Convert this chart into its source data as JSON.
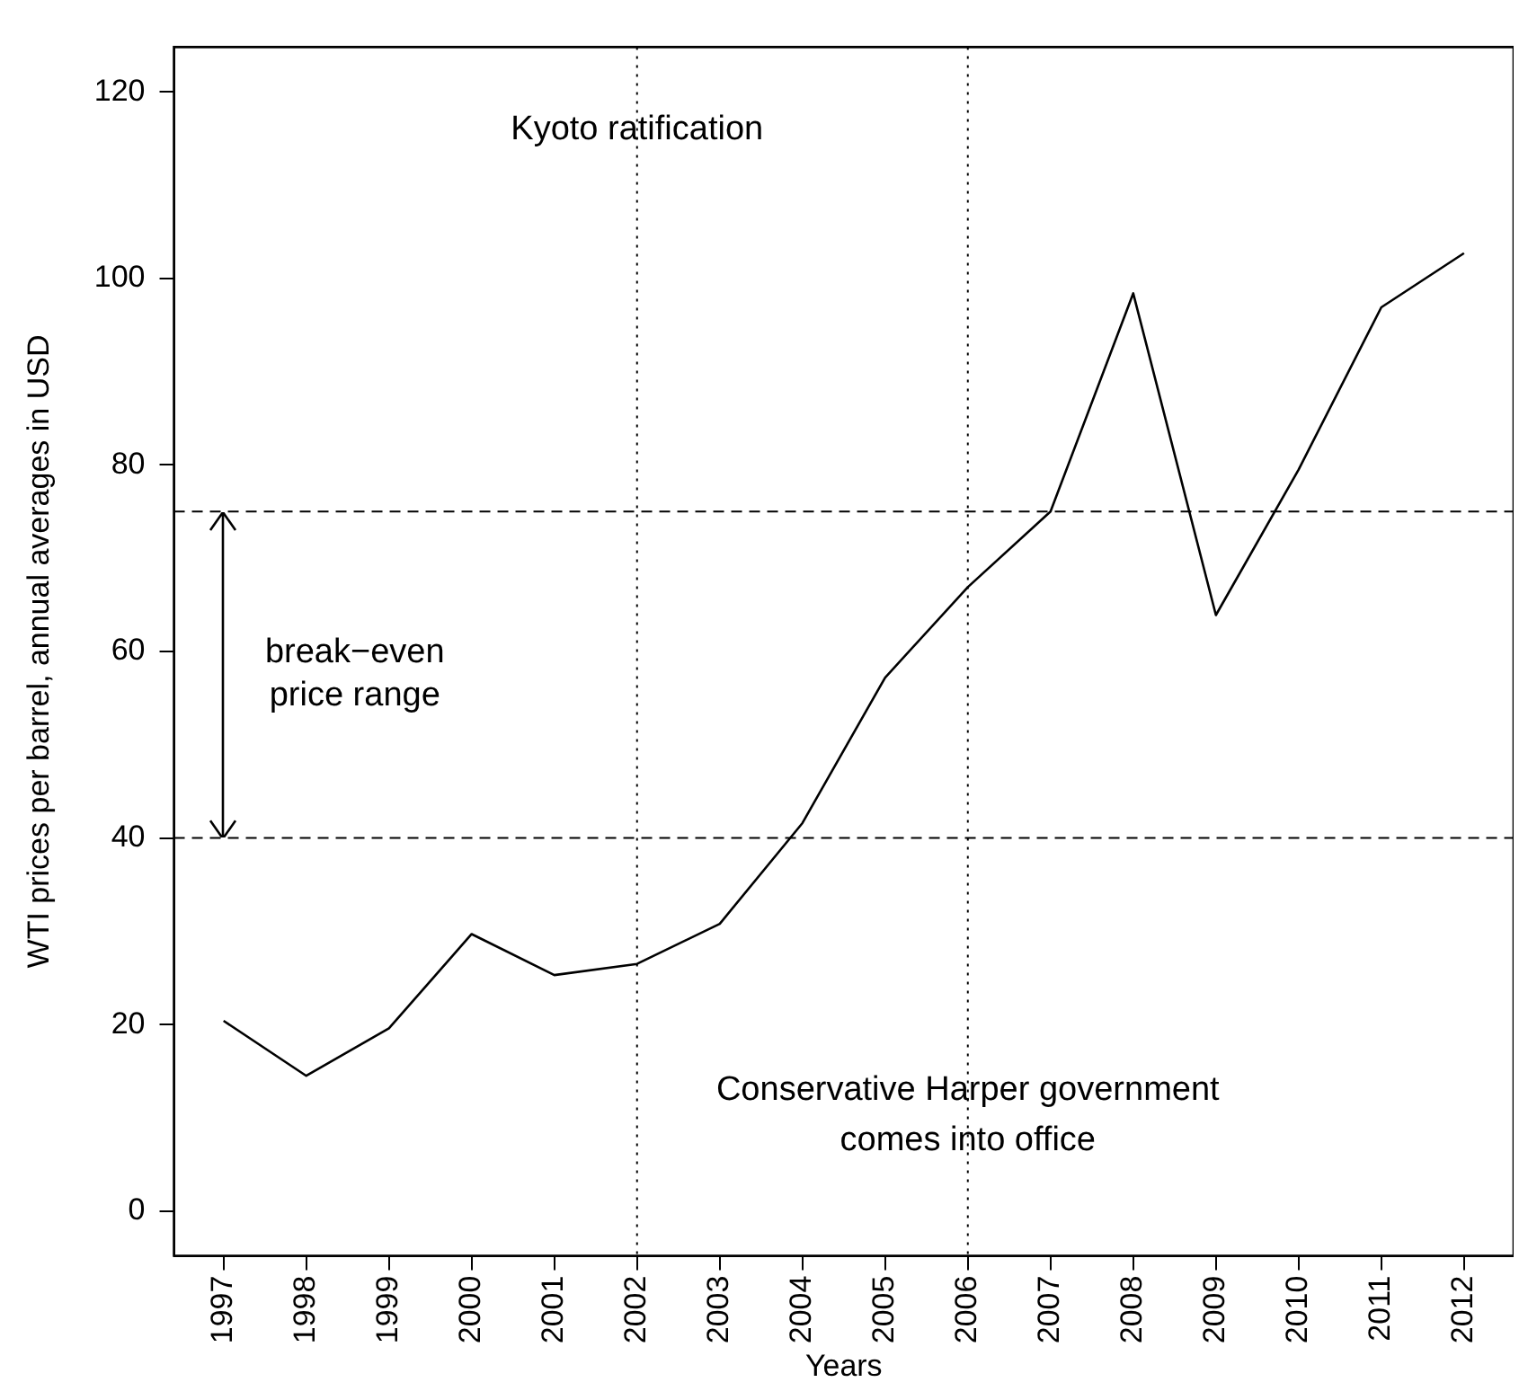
{
  "chart_data": {
    "type": "line",
    "xlabel": "Years",
    "ylabel": "WTI prices per barrel, annual averages in USD",
    "x": [
      1997,
      1998,
      1999,
      2000,
      2001,
      2002,
      2003,
      2004,
      2005,
      2006,
      2007,
      2008,
      2009,
      2010,
      2011,
      2012
    ],
    "series": [
      {
        "color": "#000000",
        "values": [
          20.4,
          14.5,
          19.6,
          29.7,
          25.3,
          26.5,
          30.8,
          41.6,
          57.2,
          66.9,
          75.0,
          98.4,
          63.9,
          79.5,
          96.9,
          102.7
        ]
      }
    ],
    "xlim": [
      1996.4,
      2012.6
    ],
    "xticks": [
      1997,
      1998,
      1999,
      2000,
      2001,
      2002,
      2003,
      2004,
      2005,
      2006,
      2007,
      2008,
      2009,
      2010,
      2011,
      2012
    ],
    "ylim": [
      -4.8,
      124.8
    ],
    "yticks": [
      0,
      20,
      40,
      60,
      80,
      100,
      120
    ],
    "ref_lines": [
      {
        "axis": "y",
        "value": 40,
        "line_style": "dashed"
      },
      {
        "axis": "y",
        "value": 75,
        "line_style": "dashed"
      },
      {
        "axis": "x",
        "value": 2002,
        "label": "Kyoto ratification",
        "line_style": "dotted"
      },
      {
        "axis": "x",
        "value": 2006,
        "label": "Conservative Harper government comes into office",
        "line_style": "dotted"
      }
    ],
    "annotations": [
      "break−even price range"
    ],
    "grid": false,
    "legend": false,
    "marker": "none",
    "line_style": "solid"
  }
}
